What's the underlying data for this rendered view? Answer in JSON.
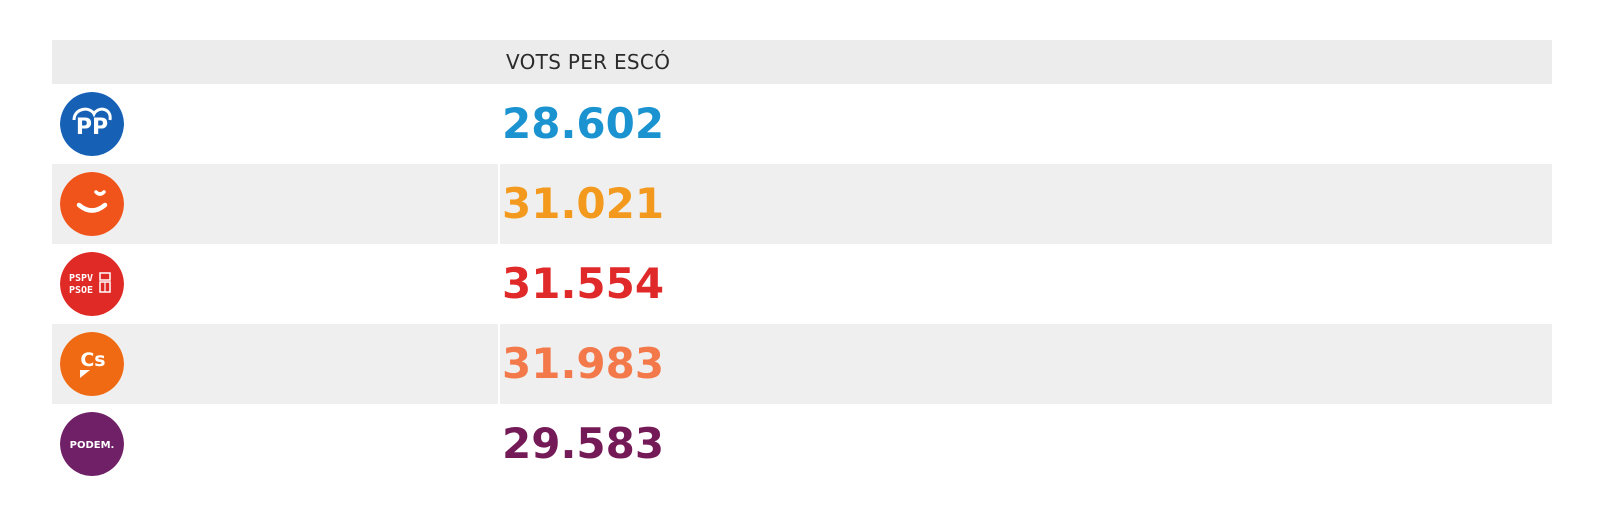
{
  "chart_data": {
    "type": "table",
    "column_header": "VOTS PER ESCÓ",
    "rows": [
      {
        "party": "PP",
        "logo_icon": "pp-logo",
        "logo_text": "PP",
        "value": "28.602",
        "value_numeric": 28602,
        "color": "#1b93d0",
        "logo_color": "#1661b5",
        "alt": false
      },
      {
        "party": "Compromís",
        "logo_icon": "compromis-logo",
        "logo_text": "",
        "value": "31.021",
        "value_numeric": 31021,
        "color": "#f39a1e",
        "logo_color": "#f0541b",
        "alt": true
      },
      {
        "party": "PSPV-PSOE",
        "logo_icon": "pspv-psoe-logo",
        "logo_text": "PSPV PSOE",
        "value": "31.554",
        "value_numeric": 31554,
        "color": "#e02a2a",
        "logo_color": "#e02a26",
        "alt": false
      },
      {
        "party": "Cs",
        "logo_icon": "cs-logo",
        "logo_text": "Cs",
        "value": "31.983",
        "value_numeric": 31983,
        "color": "#f3794a",
        "logo_color": "#f06a14",
        "alt": true
      },
      {
        "party": "PODEM",
        "logo_icon": "podem-logo",
        "logo_text": "PODEM.",
        "value": "29.583",
        "value_numeric": 29583,
        "color": "#741a57",
        "logo_color": "#6f2067",
        "alt": false
      }
    ]
  }
}
